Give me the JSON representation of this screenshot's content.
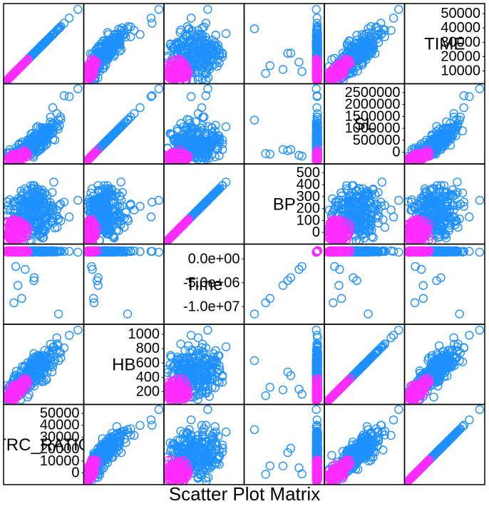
{
  "title": "Scatter Plot Matrix",
  "chart_data": {
    "type": "scatter",
    "subtype": "scatterplot-matrix",
    "title": "Scatter Plot Matrix",
    "colors": {
      "group_a": "#1e90ff",
      "group_b": "#ff2cff",
      "frame": "#000000"
    },
    "groups": [
      "group_a",
      "group_b"
    ],
    "variables": [
      {
        "name": "TRC_RATIO",
        "ticks": [
          "0",
          "10000",
          "20000",
          "30000",
          "40000",
          "50000"
        ],
        "range": [
          0,
          55000
        ]
      },
      {
        "name": "HB",
        "ticks": [
          "200",
          "400",
          "600",
          "800",
          "1000"
        ],
        "range": [
          0,
          1050
        ]
      },
      {
        "name": "Time",
        "ticks": [
          "-1.0e+07",
          "-5.0e+06",
          "0.0e+00"
        ],
        "range": [
          -12000000.0,
          500000.0
        ]
      },
      {
        "name": "BP",
        "ticks": [
          "0",
          "100",
          "200",
          "300",
          "400",
          "500"
        ],
        "range": [
          0,
          550
        ]
      },
      {
        "name": "SL",
        "ticks": [
          "0",
          "500000",
          "1000000",
          "1500000",
          "2000000",
          "2500000"
        ],
        "range": [
          0,
          2600000
        ]
      },
      {
        "name": "TIME",
        "ticks": [
          "10000",
          "20000",
          "30000",
          "40000",
          "50000"
        ],
        "range": [
          0,
          55000
        ]
      }
    ],
    "grid": false,
    "legend": "none"
  }
}
